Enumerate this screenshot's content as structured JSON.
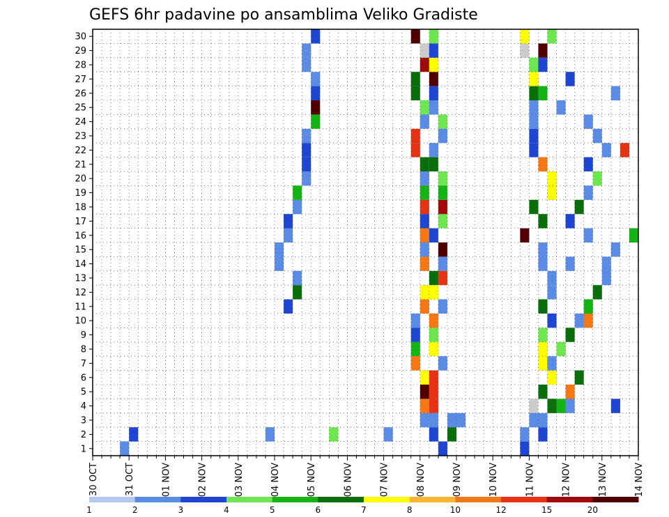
{
  "chart_data": {
    "type": "heatmap",
    "title": "GEFS 6hr padavine po ansamblima Veliko Gradiste",
    "x_tick_labels": [
      "30 OCT",
      "31 OCT",
      "01 NOV",
      "02 NOV",
      "03 NOV",
      "04 NOV",
      "05 NOV",
      "06 NOV",
      "07 NOV",
      "08 NOV",
      "09 NOV",
      "10 NOV",
      "11 NOV",
      "12 NOV",
      "13 NOV",
      "14 NOV"
    ],
    "y_tick_labels": [
      "1",
      "2",
      "3",
      "4",
      "5",
      "6",
      "7",
      "8",
      "9",
      "10",
      "11",
      "12",
      "13",
      "14",
      "15",
      "16",
      "17",
      "18",
      "19",
      "20",
      "21",
      "22",
      "23",
      "24",
      "25",
      "26",
      "27",
      "28",
      "29",
      "30"
    ],
    "grid": true,
    "color_scale": {
      "thresholds": [
        "1",
        "2",
        "3",
        "4",
        "5",
        "6",
        "7",
        "8",
        "10",
        "12",
        "15",
        "20"
      ],
      "colors": [
        "#b4c8f0",
        "#5a8ce6",
        "#1e46d2",
        "#6ee650",
        "#14b414",
        "#0a6e0a",
        "#ffff00",
        "#ffb432",
        "#f57814",
        "#e63214",
        "#a00a0a",
        "#500000"
      ]
    },
    "cells": [
      [
        0,
        3,
        1
      ],
      [
        1,
        4,
        2
      ],
      [
        1,
        19,
        1
      ],
      [
        1,
        26,
        3
      ],
      [
        1,
        32,
        1
      ],
      [
        1,
        39,
        5
      ],
      [
        2,
        39,
        1
      ],
      [
        2,
        40,
        1
      ],
      [
        3,
        50,
        10
      ],
      [
        3,
        51,
        4
      ],
      [
        3,
        52,
        1
      ],
      [
        4,
        62,
        11
      ],
      [
        5,
        62,
        3
      ],
      [
        6,
        68,
        1
      ],
      [
        7,
        74,
        4
      ],
      [
        8,
        74,
        3
      ],
      [
        8,
        75,
        4
      ],
      [
        9,
        75,
        1
      ],
      [
        10,
        21,
        2
      ],
      [
        11,
        22,
        5
      ],
      [
        12,
        22,
        1
      ],
      [
        13,
        20,
        1
      ],
      [
        14,
        20,
        1
      ],
      [
        15,
        21,
        1
      ],
      [
        16,
        21,
        2
      ],
      [
        17,
        22,
        1
      ],
      [
        18,
        22,
        4
      ],
      [
        19,
        23,
        1
      ],
      [
        20,
        23,
        2
      ],
      [
        21,
        23,
        2
      ],
      [
        22,
        23,
        1
      ],
      [
        23,
        24,
        4
      ],
      [
        24,
        24,
        11
      ],
      [
        25,
        24,
        2
      ],
      [
        26,
        24,
        1
      ],
      [
        27,
        23,
        1
      ],
      [
        28,
        23,
        1
      ],
      [
        29,
        24,
        2
      ],
      [
        2,
        36,
        1
      ],
      [
        3,
        36,
        8
      ],
      [
        4,
        36,
        11
      ],
      [
        5,
        36,
        6
      ],
      [
        6,
        35,
        8
      ],
      [
        7,
        35,
        4
      ],
      [
        8,
        35,
        2
      ],
      [
        9,
        35,
        1
      ],
      [
        10,
        36,
        8
      ],
      [
        11,
        36,
        6
      ],
      [
        12,
        37,
        5
      ],
      [
        13,
        36,
        8
      ],
      [
        14,
        36,
        1
      ],
      [
        15,
        36,
        8
      ],
      [
        16,
        36,
        2
      ],
      [
        17,
        36,
        9
      ],
      [
        18,
        36,
        4
      ],
      [
        19,
        36,
        1
      ],
      [
        20,
        36,
        5
      ],
      [
        21,
        35,
        9
      ],
      [
        22,
        35,
        9
      ],
      [
        23,
        36,
        1
      ],
      [
        24,
        36,
        3
      ],
      [
        25,
        35,
        5
      ],
      [
        26,
        35,
        5
      ],
      [
        27,
        36,
        10
      ],
      [
        28,
        36,
        12
      ],
      [
        29,
        35,
        11
      ],
      [
        0,
        38,
        2
      ],
      [
        1,
        37,
        2
      ],
      [
        2,
        37,
        1
      ],
      [
        3,
        37,
        9
      ],
      [
        4,
        37,
        9
      ],
      [
        5,
        37,
        9
      ],
      [
        6,
        38,
        1
      ],
      [
        7,
        37,
        6
      ],
      [
        8,
        37,
        3
      ],
      [
        9,
        37,
        8
      ],
      [
        10,
        38,
        1
      ],
      [
        11,
        37,
        6
      ],
      [
        12,
        38,
        9
      ],
      [
        13,
        38,
        1
      ],
      [
        14,
        38,
        11
      ],
      [
        15,
        37,
        2
      ],
      [
        16,
        38,
        3
      ],
      [
        17,
        38,
        10
      ],
      [
        18,
        38,
        4
      ],
      [
        19,
        38,
        3
      ],
      [
        20,
        37,
        5
      ],
      [
        21,
        37,
        1
      ],
      [
        22,
        38,
        1
      ],
      [
        23,
        38,
        3
      ],
      [
        24,
        37,
        1
      ],
      [
        25,
        37,
        2
      ],
      [
        26,
        37,
        11
      ],
      [
        27,
        37,
        6
      ],
      [
        28,
        37,
        2
      ],
      [
        29,
        37,
        3
      ],
      [
        1,
        49,
        2
      ],
      [
        2,
        48,
        1
      ],
      [
        3,
        48,
        12
      ],
      [
        4,
        49,
        5
      ],
      [
        5,
        50,
        6
      ],
      [
        6,
        49,
        6
      ],
      [
        7,
        49,
        6
      ],
      [
        8,
        49,
        3
      ],
      [
        9,
        50,
        2
      ],
      [
        10,
        49,
        5
      ],
      [
        11,
        50,
        1
      ],
      [
        12,
        50,
        1
      ],
      [
        13,
        49,
        1
      ],
      [
        14,
        49,
        1
      ],
      [
        15,
        47,
        11
      ],
      [
        16,
        49,
        5
      ],
      [
        17,
        48,
        5
      ],
      [
        18,
        50,
        6
      ],
      [
        19,
        50,
        6
      ],
      [
        20,
        49,
        8
      ],
      [
        21,
        48,
        2
      ],
      [
        22,
        48,
        2
      ],
      [
        23,
        48,
        1
      ],
      [
        24,
        48,
        1
      ],
      [
        25,
        48,
        5
      ],
      [
        26,
        48,
        6
      ],
      [
        27,
        48,
        3
      ],
      [
        28,
        47,
        12
      ],
      [
        29,
        47,
        6
      ],
      [
        0,
        47,
        2
      ],
      [
        1,
        47,
        1
      ],
      [
        2,
        49,
        1
      ],
      [
        3,
        50,
        5
      ],
      [
        4,
        52,
        8
      ],
      [
        5,
        53,
        5
      ],
      [
        6,
        50,
        1
      ],
      [
        7,
        51,
        3
      ],
      [
        8,
        52,
        5
      ],
      [
        9,
        53,
        1
      ],
      [
        10,
        54,
        4
      ],
      [
        11,
        55,
        5
      ],
      [
        12,
        56,
        1
      ],
      [
        13,
        56,
        1
      ],
      [
        14,
        57,
        1
      ],
      [
        15,
        54,
        1
      ],
      [
        16,
        52,
        2
      ],
      [
        17,
        53,
        5
      ],
      [
        18,
        54,
        1
      ],
      [
        19,
        55,
        3
      ],
      [
        20,
        54,
        2
      ],
      [
        21,
        56,
        1
      ],
      [
        22,
        55,
        1
      ],
      [
        23,
        54,
        1
      ],
      [
        24,
        51,
        1
      ],
      [
        25,
        49,
        4
      ],
      [
        26,
        52,
        2
      ],
      [
        27,
        49,
        2
      ],
      [
        28,
        49,
        11
      ],
      [
        29,
        50,
        3
      ],
      [
        9,
        54,
        8
      ],
      [
        13,
        52,
        1
      ],
      [
        15,
        59,
        4
      ],
      [
        19,
        61,
        2
      ],
      [
        21,
        58,
        9
      ],
      [
        22,
        62,
        1
      ],
      [
        25,
        57,
        1
      ],
      [
        26,
        60,
        2
      ],
      [
        7,
        62,
        6
      ],
      [
        6,
        61,
        2
      ],
      [
        4,
        62,
        9
      ],
      [
        3,
        57,
        2
      ],
      [
        18,
        60,
        2
      ],
      [
        9,
        66,
        1
      ],
      [
        0,
        70,
        11
      ],
      [
        4,
        71,
        2
      ],
      [
        4,
        72,
        3
      ],
      [
        5,
        70,
        1
      ],
      [
        8,
        66,
        1
      ],
      [
        9,
        66,
        2
      ],
      [
        10,
        68,
        3
      ],
      [
        11,
        69,
        5
      ],
      [
        11,
        70,
        7
      ],
      [
        11,
        71,
        4
      ],
      [
        12,
        71,
        1
      ],
      [
        15,
        69,
        2
      ],
      [
        15,
        70,
        6
      ],
      [
        17,
        65,
        3
      ],
      [
        17,
        66,
        6
      ],
      [
        17,
        67,
        11
      ],
      [
        17,
        68,
        3
      ],
      [
        17,
        69,
        1
      ],
      [
        19,
        67,
        1
      ],
      [
        19,
        68,
        5
      ],
      [
        19,
        70,
        6
      ],
      [
        20,
        69,
        2
      ],
      [
        21,
        71,
        1
      ],
      [
        25,
        68,
        1
      ],
      [
        26,
        67,
        3
      ],
      [
        26,
        68,
        3
      ],
      [
        26,
        69,
        2
      ],
      [
        26,
        70,
        11
      ],
      [
        26,
        71,
        5
      ],
      [
        26,
        72,
        5
      ],
      [
        27,
        69,
        2
      ],
      [
        27,
        70,
        2
      ],
      [
        28,
        71,
        8
      ],
      [
        28,
        72,
        5
      ],
      [
        28,
        73,
        4
      ],
      [
        0,
        80,
        5
      ],
      [
        0,
        81,
        5
      ],
      [
        0,
        82,
        4
      ],
      [
        0,
        83,
        5
      ],
      [
        3,
        79,
        1
      ],
      [
        4,
        80,
        2
      ],
      [
        14,
        81,
        1
      ],
      [
        14,
        82,
        6
      ],
      [
        14,
        83,
        9
      ],
      [
        14,
        84,
        2
      ],
      [
        18,
        82,
        2
      ],
      [
        18,
        83,
        1
      ],
      [
        19,
        84,
        6
      ],
      [
        19,
        85,
        4
      ],
      [
        21,
        83,
        5
      ],
      [
        22,
        84,
        11
      ],
      [
        22,
        85,
        2
      ],
      [
        25,
        83,
        1
      ],
      [
        25,
        84,
        2
      ],
      [
        26,
        84,
        10
      ],
      [
        26,
        85,
        2
      ],
      [
        26,
        86,
        1
      ],
      [
        6,
        72,
        1
      ],
      [
        6,
        73,
        1
      ],
      [
        9,
        73,
        1
      ],
      [
        10,
        72,
        1
      ],
      [
        15,
        74,
        5
      ],
      [
        15,
        75,
        2
      ],
      [
        15,
        76,
        2
      ],
      [
        17,
        72,
        2
      ],
      [
        18,
        73,
        2
      ],
      [
        19,
        75,
        3
      ],
      [
        19,
        76,
        11
      ],
      [
        19,
        77,
        5
      ],
      [
        20,
        76,
        12
      ],
      [
        20,
        77,
        11
      ],
      [
        22,
        78,
        2
      ],
      [
        22,
        79,
        1
      ],
      [
        24,
        76,
        1
      ],
      [
        24,
        77,
        1
      ],
      [
        25,
        75,
        4
      ],
      [
        26,
        75,
        2
      ],
      [
        28,
        74,
        9
      ],
      [
        28,
        75,
        9
      ],
      [
        28,
        76,
        9
      ],
      [
        28,
        77,
        8
      ],
      [
        29,
        78,
        11
      ]
    ]
  }
}
